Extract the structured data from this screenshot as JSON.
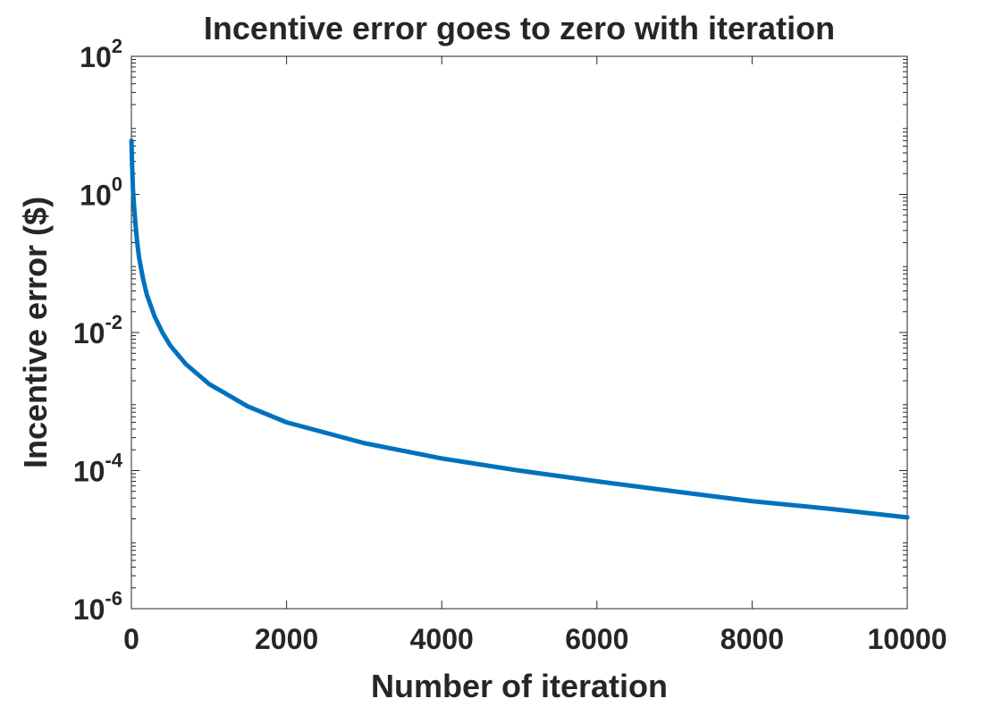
{
  "chart_data": {
    "type": "line",
    "title": "Incentive error goes to zero with iteration",
    "xlabel": "Number of iteration",
    "ylabel": "Incentive error ($)",
    "xscale": "linear",
    "yscale": "log",
    "xlim": [
      0,
      10000
    ],
    "ylim": [
      1e-06,
      100
    ],
    "grid": false,
    "legend": "none",
    "x_ticks": [
      {
        "value": 0,
        "label": "0"
      },
      {
        "value": 2000,
        "label": "2000"
      },
      {
        "value": 4000,
        "label": "4000"
      },
      {
        "value": 6000,
        "label": "6000"
      },
      {
        "value": 8000,
        "label": "8000"
      },
      {
        "value": 10000,
        "label": "10000"
      }
    ],
    "y_ticks": [
      {
        "value": 1e-06,
        "base": "10",
        "exp": "-6"
      },
      {
        "value": 0.0001,
        "base": "10",
        "exp": "-4"
      },
      {
        "value": 0.01,
        "base": "10",
        "exp": "-2"
      },
      {
        "value": 1,
        "base": "10",
        "exp": "0"
      },
      {
        "value": 100,
        "base": "10",
        "exp": "2"
      }
    ],
    "series": [
      {
        "color": "#0072bd",
        "x": [
          1,
          5,
          10,
          20,
          30,
          50,
          75,
          100,
          150,
          200,
          300,
          400,
          500,
          700,
          1000,
          1500,
          2000,
          3000,
          4000,
          5000,
          6000,
          7000,
          8000,
          9000,
          10000
        ],
        "y": [
          6.0,
          4.0,
          2.5,
          1.2,
          0.8,
          0.4,
          0.2,
          0.12,
          0.06,
          0.035,
          0.017,
          0.01,
          0.0065,
          0.0035,
          0.0018,
          0.00085,
          0.0005,
          0.00025,
          0.00015,
          0.0001,
          7e-05,
          5e-05,
          3.6e-05,
          2.8e-05,
          2.1e-05
        ]
      }
    ]
  }
}
